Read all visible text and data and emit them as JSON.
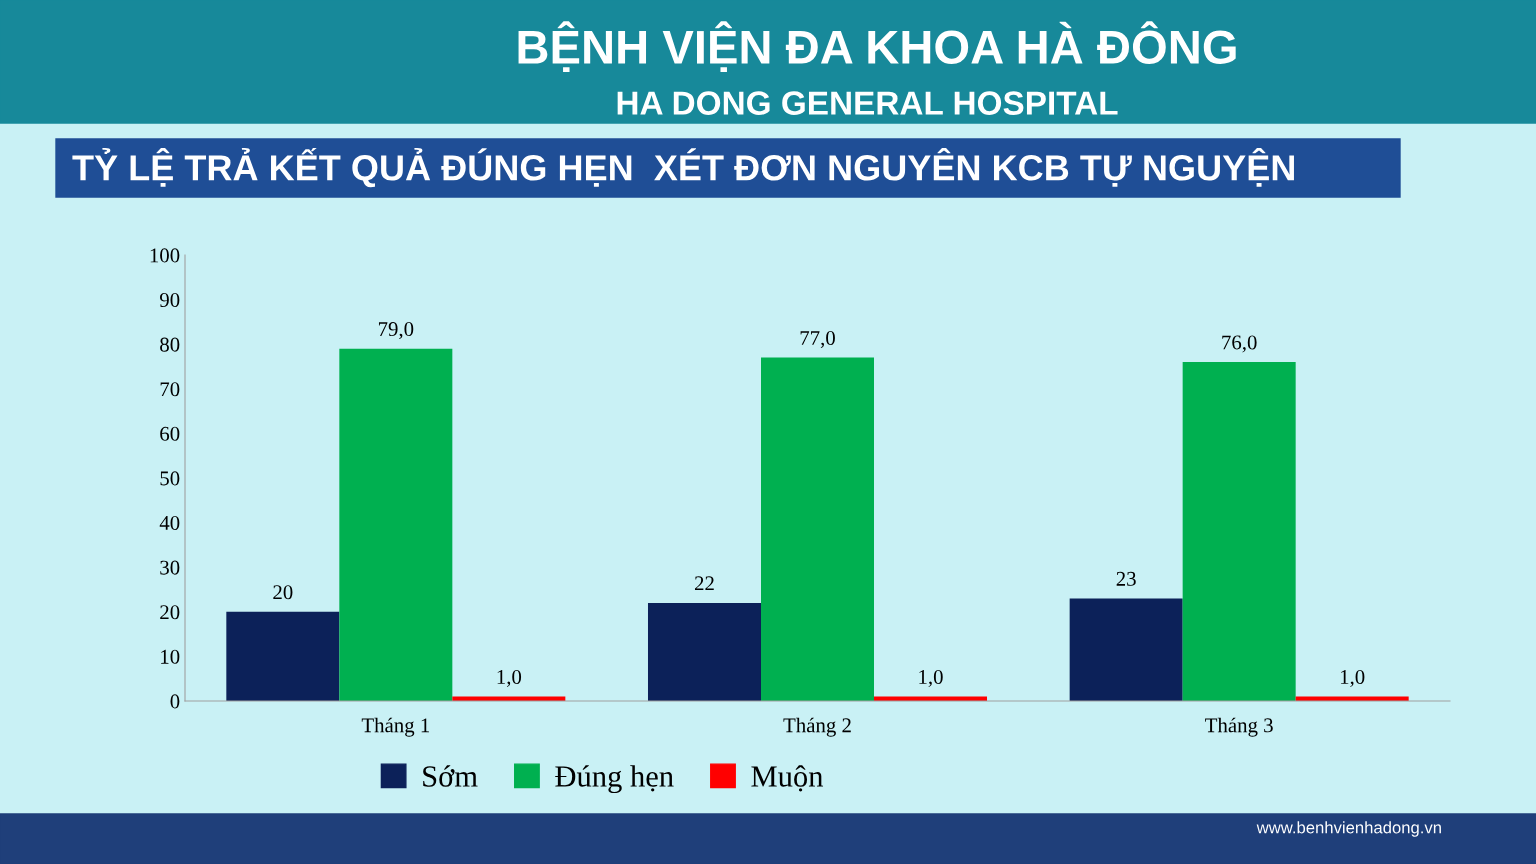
{
  "chart_data": {
    "type": "bar",
    "title": "TỶ LỆ TRẢ KẾT QUẢ ĐÚNG HẸN  XÉT ĐƠN NGUYÊN KCB TỰ NGUYỆN",
    "annotations": [
      "BỆNH VIỆN ĐA KHOA HÀ ĐÔNG",
      "HA DONG GENERAL HOSPITAL",
      "www.benhvienhadong.vn"
    ],
    "categories": [
      "Tháng 1",
      "Tháng 2",
      "Tháng 3"
    ],
    "series": [
      {
        "name": "Sớm",
        "color": "#0c2159",
        "values": [
          20,
          22,
          23
        ],
        "value_labels": [
          "20",
          "22",
          "23"
        ]
      },
      {
        "name": "Đúng hẹn",
        "color": "#00b050",
        "values": [
          79,
          77,
          76
        ],
        "value_labels": [
          "79,0",
          "77,0",
          "76,0"
        ]
      },
      {
        "name": "Muộn",
        "color": "#ff0000",
        "values": [
          1,
          1,
          1
        ],
        "value_labels": [
          "1,0",
          "1,0",
          "1,0"
        ]
      }
    ],
    "ylim": [
      0,
      100
    ],
    "yticks": [
      0,
      10,
      20,
      30,
      40,
      50,
      60,
      70,
      80,
      90,
      100
    ],
    "grid": false,
    "legend": "bottom"
  }
}
